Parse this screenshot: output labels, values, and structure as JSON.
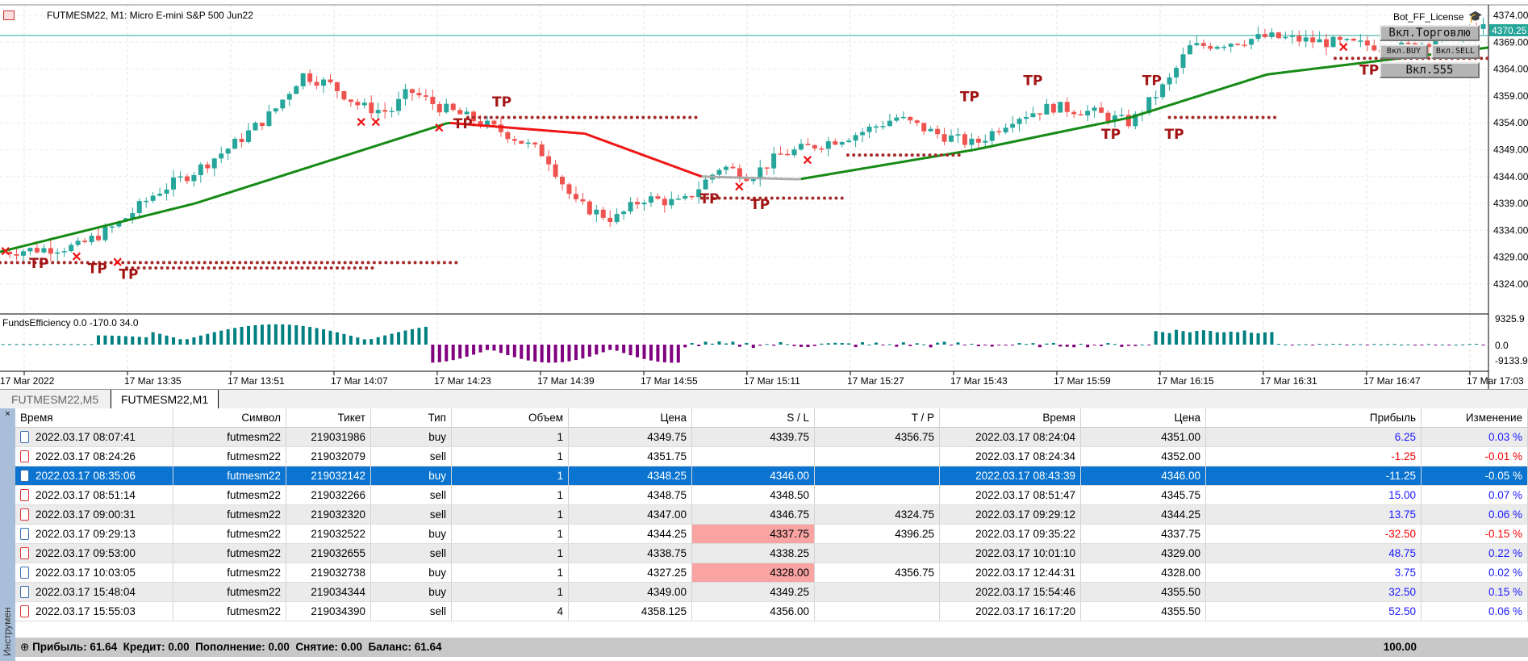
{
  "chart": {
    "title": "FUTMESM22, M1:  Micro E-mini S&P 500 Jun22",
    "license_label": "Bot_FF_License",
    "current_price": "4370.25",
    "price_ticks": [
      "4374.00",
      "4369.00",
      "4364.00",
      "4359.00",
      "4354.00",
      "4349.00",
      "4344.00",
      "4339.00",
      "4334.00",
      "4329.00",
      "4324.00"
    ],
    "buttons": {
      "trade": "Вкл.Торговлю",
      "buy": "Вкл.BUY",
      "sell": "Вкл.SELL",
      "b555": "Вкл.555"
    },
    "indicator": {
      "label": "FundsEfficiency 0.0 -170.0 34.0",
      "ticks": [
        "9325.9",
        "0.0",
        "-9133.9"
      ]
    },
    "time_ticks": [
      "17 Mar 2022",
      "17 Mar 13:35",
      "17 Mar 13:51",
      "17 Mar 14:07",
      "17 Mar 14:23",
      "17 Mar 14:39",
      "17 Mar 14:55",
      "17 Mar 15:11",
      "17 Mar 15:27",
      "17 Mar 15:43",
      "17 Mar 15:59",
      "17 Mar 16:15",
      "17 Mar 16:31",
      "17 Mar 16:47",
      "17 Mar 17:03"
    ],
    "tp_label": "TP",
    "colors": {
      "bull": "#26a69a",
      "bear": "#ef5350",
      "ma_up": "#118811",
      "ma_down": "#ee1111",
      "ma_flat": "#aaaaaa",
      "ind_pos": "#008080",
      "ind_neg": "#800080"
    }
  },
  "tabs": [
    "FUTMESM22,M5",
    "FUTMESM22,M1"
  ],
  "table": {
    "headers": [
      "Время",
      "Символ",
      "Тикет",
      "Тип",
      "Объем",
      "Цена",
      "S / L",
      "T / P",
      "Время",
      "Цена",
      "Прибыль",
      "Изменение"
    ],
    "rows": [
      [
        "2022.03.17 08:07:41",
        "futmesm22",
        "219031986",
        "buy",
        "1",
        "4349.75",
        "4339.75",
        "4356.75",
        "2022.03.17 08:24:04",
        "4351.00",
        "6.25",
        "0.03 %"
      ],
      [
        "2022.03.17 08:24:26",
        "futmesm22",
        "219032079",
        "sell",
        "1",
        "4351.75",
        "",
        "",
        "2022.03.17 08:24:34",
        "4352.00",
        "-1.25",
        "-0.01 %"
      ],
      [
        "2022.03.17 08:35:06",
        "futmesm22",
        "219032142",
        "buy",
        "1",
        "4348.25",
        "4346.00",
        "",
        "2022.03.17 08:43:39",
        "4346.00",
        "-11.25",
        "-0.05 %"
      ],
      [
        "2022.03.17 08:51:14",
        "futmesm22",
        "219032266",
        "sell",
        "1",
        "4348.75",
        "4348.50",
        "",
        "2022.03.17 08:51:47",
        "4345.75",
        "15.00",
        "0.07 %"
      ],
      [
        "2022.03.17 09:00:31",
        "futmesm22",
        "219032320",
        "sell",
        "1",
        "4347.00",
        "4346.75",
        "4324.75",
        "2022.03.17 09:29:12",
        "4344.25",
        "13.75",
        "0.06 %"
      ],
      [
        "2022.03.17 09:29:13",
        "futmesm22",
        "219032522",
        "buy",
        "1",
        "4344.25",
        "4337.75",
        "4396.25",
        "2022.03.17 09:35:22",
        "4337.75",
        "-32.50",
        "-0.15 %"
      ],
      [
        "2022.03.17 09:53:00",
        "futmesm22",
        "219032655",
        "sell",
        "1",
        "4338.75",
        "4338.25",
        "",
        "2022.03.17 10:01:10",
        "4329.00",
        "48.75",
        "0.22 %"
      ],
      [
        "2022.03.17 10:03:05",
        "futmesm22",
        "219032738",
        "buy",
        "1",
        "4327.25",
        "4328.00",
        "4356.75",
        "2022.03.17 12:44:31",
        "4328.00",
        "3.75",
        "0.02 %"
      ],
      [
        "2022.03.17 15:48:04",
        "futmesm22",
        "219034344",
        "buy",
        "1",
        "4349.00",
        "4349.25",
        "",
        "2022.03.17 15:54:46",
        "4355.50",
        "32.50",
        "0.15 %"
      ],
      [
        "2022.03.17 15:55:03",
        "futmesm22",
        "219034390",
        "sell",
        "4",
        "4358.125",
        "4356.00",
        "",
        "2022.03.17 16:17:20",
        "4355.50",
        "52.50",
        "0.06 %"
      ]
    ],
    "selected_row": 2,
    "highlight_sl_rows": [
      5,
      7
    ],
    "footer": "Прибыль: 61.64  Кредит: 0.00  Пополнение: 0.00  Снятие: 0.00  Баланс: 61.64",
    "footer_pct": "100.00",
    "side_label": "Инструменты"
  },
  "chart_data": {
    "type": "candlestick",
    "price_range": [
      4321,
      4375
    ],
    "path": [
      [
        0,
        4330
      ],
      [
        80,
        4331
      ],
      [
        120,
        4335
      ],
      [
        160,
        4341
      ],
      [
        200,
        4345
      ],
      [
        240,
        4350
      ],
      [
        280,
        4356
      ],
      [
        310,
        4363
      ],
      [
        340,
        4361
      ],
      [
        370,
        4357
      ],
      [
        400,
        4356
      ],
      [
        420,
        4360
      ],
      [
        450,
        4357
      ],
      [
        480,
        4355
      ],
      [
        520,
        4352
      ],
      [
        560,
        4348
      ],
      [
        590,
        4339
      ],
      [
        630,
        4336
      ],
      [
        660,
        4340
      ],
      [
        700,
        4339
      ],
      [
        740,
        4346
      ],
      [
        770,
        4344
      ],
      [
        800,
        4348
      ],
      [
        840,
        4350
      ],
      [
        880,
        4352
      ],
      [
        920,
        4355
      ],
      [
        960,
        4352
      ],
      [
        1000,
        4350
      ],
      [
        1040,
        4355
      ],
      [
        1080,
        4357
      ],
      [
        1120,
        4356
      ],
      [
        1160,
        4354
      ],
      [
        1200,
        4362
      ],
      [
        1220,
        4368
      ],
      [
        1300,
        4370
      ],
      [
        1360,
        4369
      ],
      [
        1440,
        4368
      ],
      [
        1527,
        4372
      ]
    ],
    "ma": [
      [
        0,
        4330
      ],
      [
        200,
        4339
      ],
      [
        460,
        4354
      ],
      [
        600,
        4352
      ],
      [
        720,
        4344
      ],
      [
        820,
        4343.5
      ],
      [
        1000,
        4349
      ],
      [
        1160,
        4355
      ],
      [
        1300,
        4363
      ],
      [
        1527,
        4368
      ]
    ]
  }
}
